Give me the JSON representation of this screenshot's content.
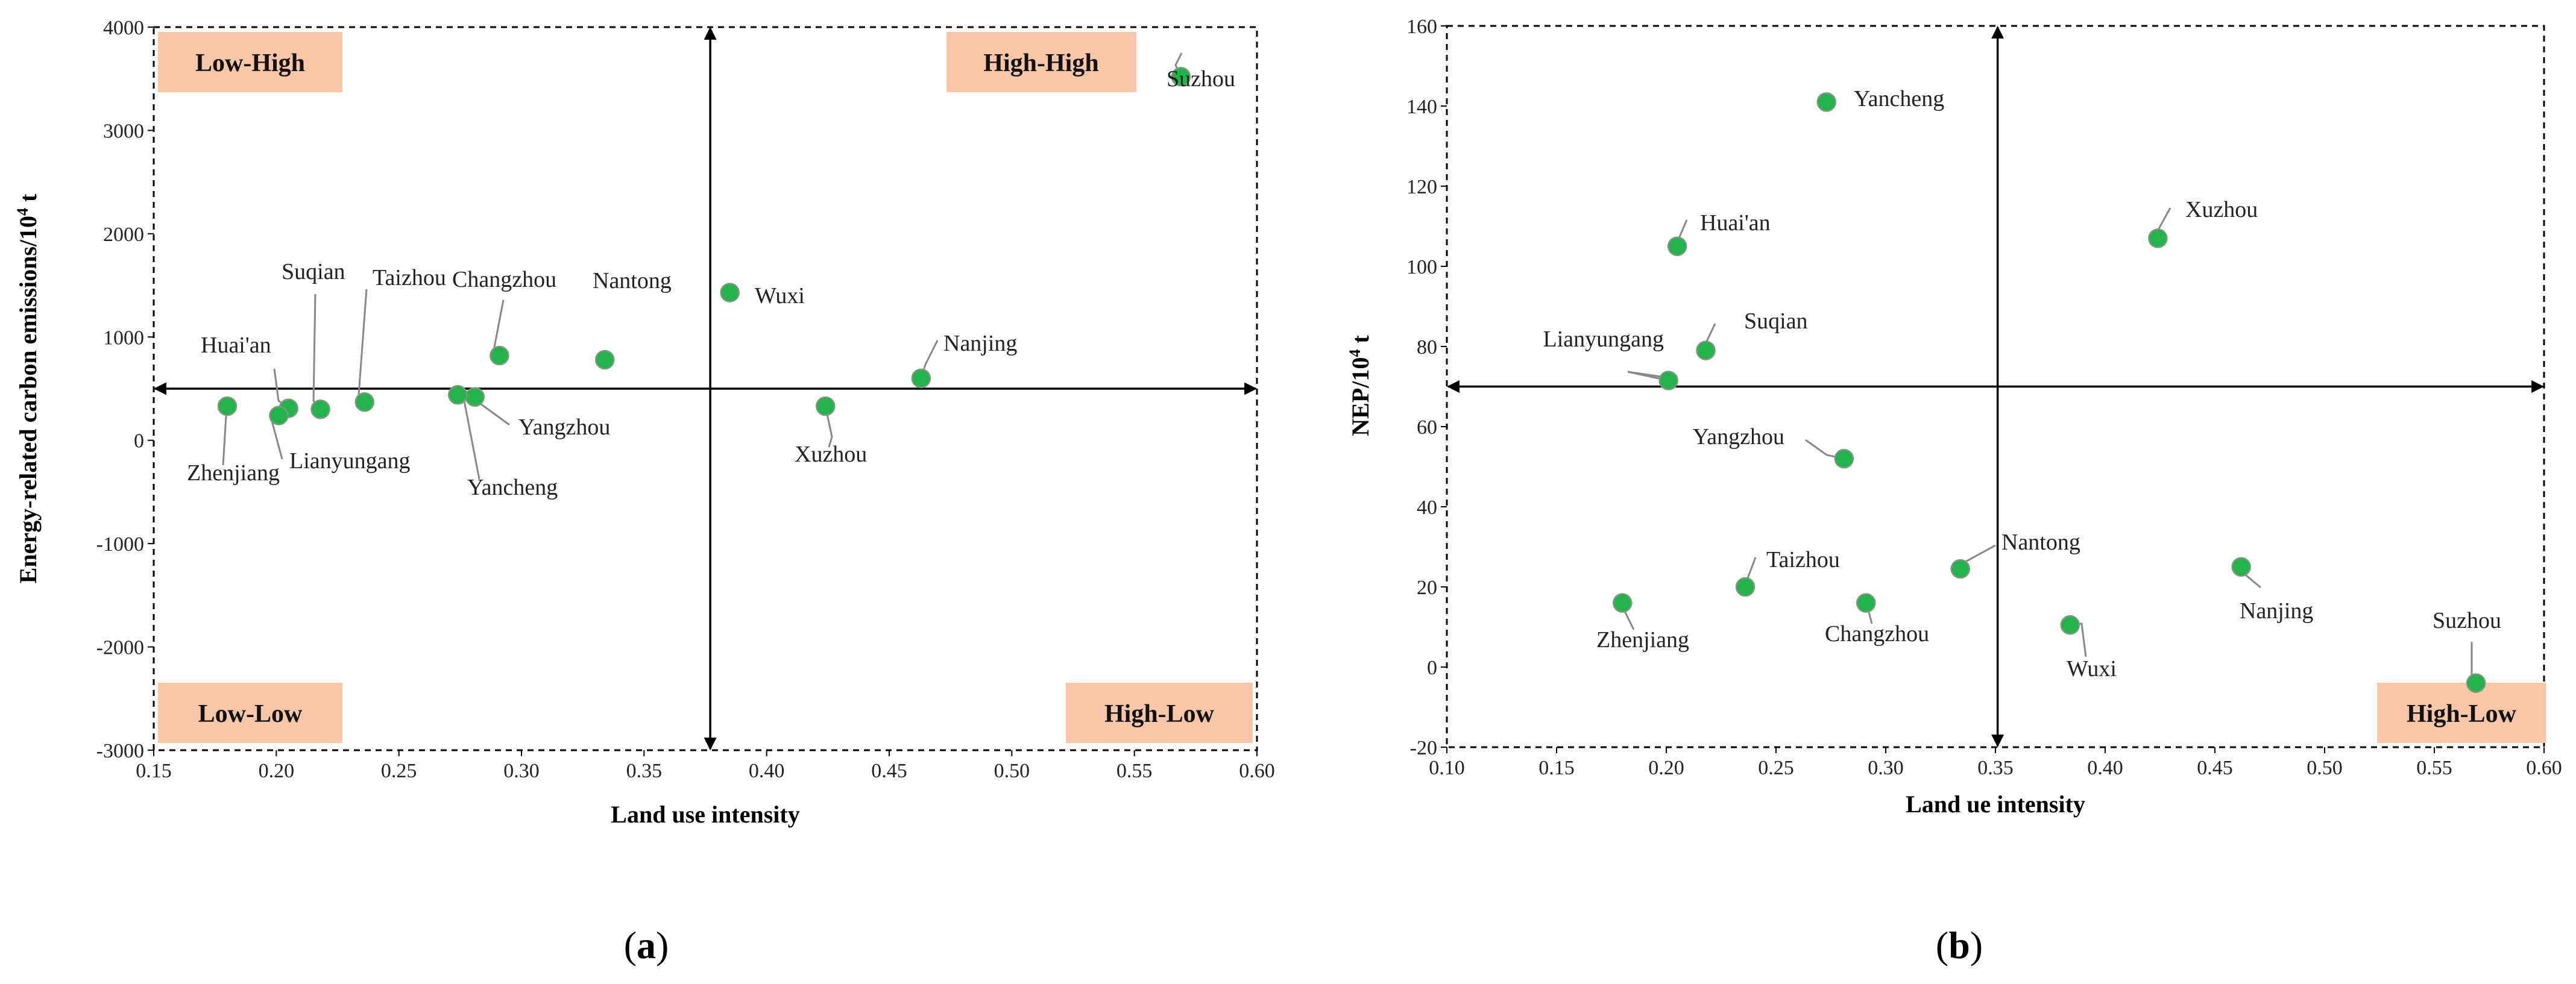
{
  "chart_data": [
    {
      "type": "scatter",
      "caption": "a",
      "xlabel": "Land use intensity",
      "ylabel": "Energy-related carbon emissions/10",
      "ylabel_sup": "4",
      "ylabel_suffix": " t",
      "xlim": [
        0.15,
        0.6
      ],
      "ylim": [
        -3000,
        4000
      ],
      "x_ticks": [
        "0.15",
        "0.20",
        "0.25",
        "0.30",
        "0.35",
        "0.40",
        "0.45",
        "0.50",
        "0.55",
        "0.60"
      ],
      "y_ticks": [
        "4000",
        "3000",
        "2000",
        "1000",
        "0",
        "-1000",
        "-2000",
        "-3000"
      ],
      "crosshair": {
        "x": 0.377,
        "y": 500
      },
      "marker_color": "#22b34a",
      "quadrant_fill": "#f9c7a8",
      "quadrant_labels": [
        "Low-High",
        "High-High",
        "Low-Low",
        "High-Low"
      ],
      "points": [
        {
          "name": "Suzhou",
          "x": 0.569,
          "y": 3520
        },
        {
          "name": "Wuxi",
          "x": 0.385,
          "y": 1430
        },
        {
          "name": "Nanjing",
          "x": 0.463,
          "y": 600
        },
        {
          "name": "Xuzhou",
          "x": 0.424,
          "y": 330
        },
        {
          "name": "Nantong",
          "x": 0.334,
          "y": 780
        },
        {
          "name": "Changzhou",
          "x": 0.291,
          "y": 820
        },
        {
          "name": "Yangzhou",
          "x": 0.281,
          "y": 420
        },
        {
          "name": "Yancheng",
          "x": 0.274,
          "y": 440
        },
        {
          "name": "Taizhou",
          "x": 0.236,
          "y": 370
        },
        {
          "name": "Suqian",
          "x": 0.218,
          "y": 300
        },
        {
          "name": "Huai'an",
          "x": 0.205,
          "y": 310
        },
        {
          "name": "Lianyungang",
          "x": 0.201,
          "y": 240
        },
        {
          "name": "Zhenjiang",
          "x": 0.18,
          "y": 330
        }
      ]
    },
    {
      "type": "scatter",
      "caption": "b",
      "xlabel": "Land ue intensity",
      "ylabel": "NEP/10",
      "ylabel_sup": "4",
      "ylabel_suffix": " t",
      "xlim": [
        0.1,
        0.6
      ],
      "ylim": [
        -20,
        160
      ],
      "x_ticks": [
        "0.10",
        "0.15",
        "0.20",
        "0.25",
        "0.30",
        "0.35",
        "0.40",
        "0.45",
        "0.50",
        "0.55",
        "0.60"
      ],
      "y_ticks": [
        "160",
        "140",
        "120",
        "100",
        "80",
        "60",
        "40",
        "20",
        "0",
        "-20"
      ],
      "crosshair": {
        "x": 0.351,
        "y": 70
      },
      "marker_color": "#22b34a",
      "quadrant_fill": "#f9c7a8",
      "quadrant_labels": [
        "High-Low"
      ],
      "points": [
        {
          "name": "Yancheng",
          "x": 0.273,
          "y": 141
        },
        {
          "name": "Xuzhou",
          "x": 0.424,
          "y": 107
        },
        {
          "name": "Huai'an",
          "x": 0.205,
          "y": 105
        },
        {
          "name": "Suqian",
          "x": 0.218,
          "y": 79
        },
        {
          "name": "Lianyungang",
          "x": 0.201,
          "y": 71.5
        },
        {
          "name": "Yangzhou",
          "x": 0.281,
          "y": 52
        },
        {
          "name": "Nantong",
          "x": 0.334,
          "y": 24.5
        },
        {
          "name": "Nanjing",
          "x": 0.462,
          "y": 25
        },
        {
          "name": "Taizhou",
          "x": 0.236,
          "y": 20
        },
        {
          "name": "Zhenjiang",
          "x": 0.18,
          "y": 16
        },
        {
          "name": "Changzhou",
          "x": 0.291,
          "y": 16
        },
        {
          "name": "Wuxi",
          "x": 0.384,
          "y": 10.5
        },
        {
          "name": "Suzhou",
          "x": 0.569,
          "y": -4
        }
      ]
    }
  ]
}
